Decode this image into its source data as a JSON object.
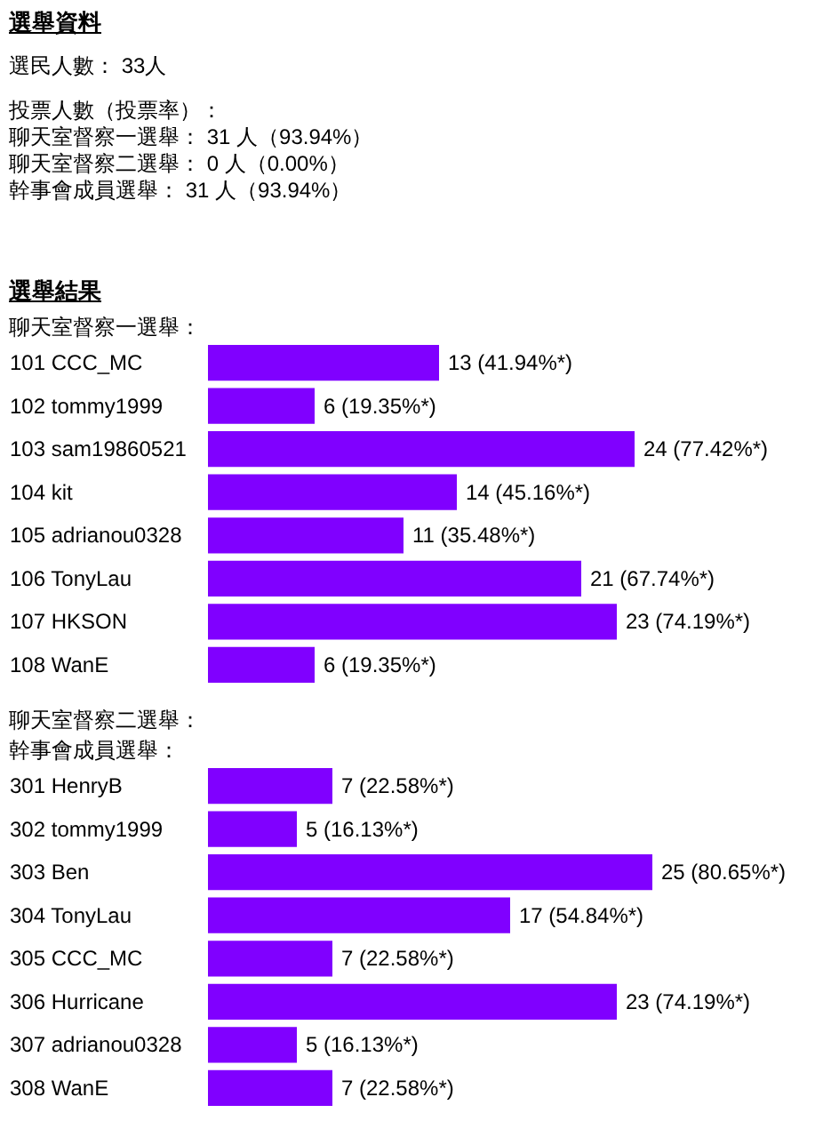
{
  "chart_data": [
    {
      "type": "other",
      "title": "選舉資料",
      "annotations": [
        "選民人數： 33人",
        "投票人數（投票率）：",
        "聊天室督察一選舉： 31 人（93.94%）",
        "聊天室督察二選舉： 0 人（0.00%）",
        "幹事會成員選舉： 31 人（93.94%）"
      ]
    },
    {
      "type": "bar",
      "orientation": "horizontal",
      "title": "選舉結果",
      "subtitle": "聊天室督察一選舉：",
      "annotations": [
        "聊天室督察二選舉："
      ],
      "categories": [
        "101 CCC_MC",
        "102 tommy1999",
        "103 sam19860521",
        "104 kit",
        "105 adrianou0328",
        "106 TonyLau",
        "107 HKSON",
        "108 WanE"
      ],
      "values": [
        13,
        6,
        24,
        14,
        11,
        21,
        23,
        6
      ],
      "color": "#8000ff",
      "value_labels": [
        "13 (41.94%*)",
        "6 (19.35%*)",
        "24 (77.42%*)",
        "14 (45.16%*)",
        "11 (35.48%*)",
        "21 (67.74%*)",
        "23 (74.19%*)",
        "6 (19.35%*)"
      ]
    },
    {
      "type": "bar",
      "orientation": "horizontal",
      "title": "幹事會成員選舉：",
      "categories": [
        "301 HenryB",
        "302 tommy1999",
        "303 Ben",
        "304 TonyLau",
        "305 CCC_MC",
        "306 Hurricane",
        "307 adrianou0328",
        "308 WanE"
      ],
      "values": [
        7,
        5,
        25,
        17,
        7,
        23,
        5,
        7
      ],
      "color": "#8000ff",
      "value_labels": [
        "7 (22.58%*)",
        "5 (16.13%*)",
        "25 (80.65%*)",
        "17 (54.84%*)",
        "7 (22.58%*)",
        "23 (74.19%*)",
        "5 (16.13%*)",
        "7 (22.58%*)"
      ]
    }
  ]
}
